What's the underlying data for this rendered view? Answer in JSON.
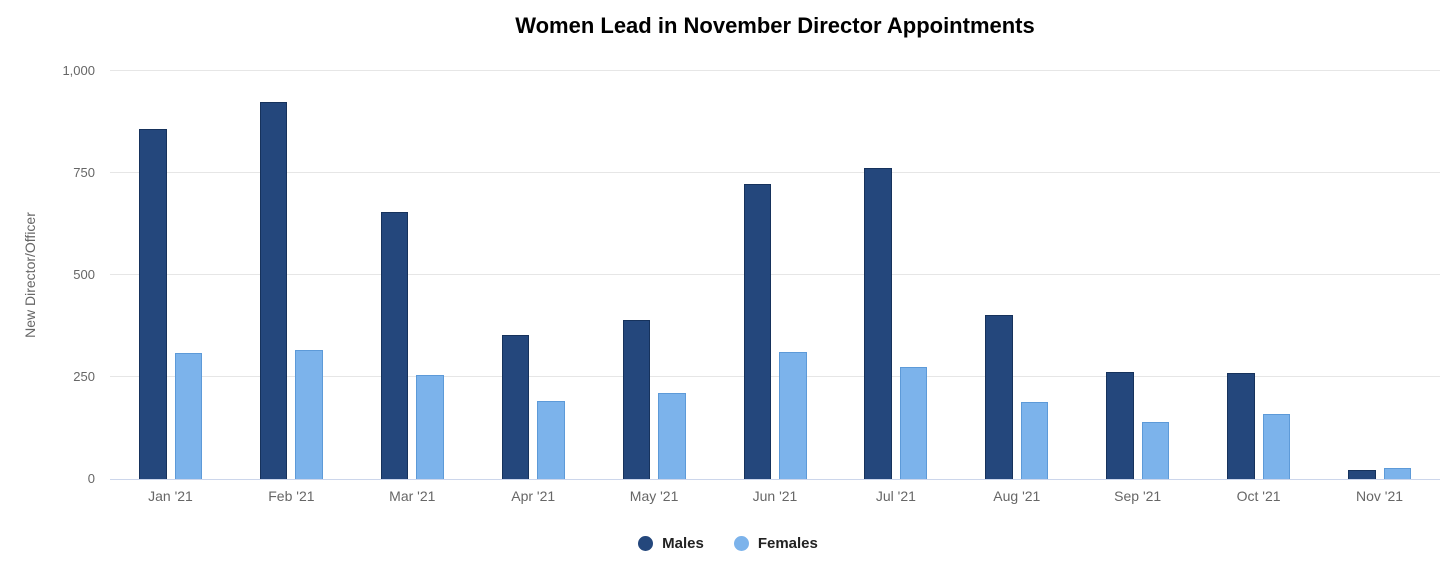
{
  "title": "Women Lead in November Director Appointments",
  "chart_data": {
    "type": "bar",
    "title": "Women Lead in November Director Appointments",
    "xlabel": "",
    "ylabel": "New Director/Officer",
    "ylim": [
      0,
      1000
    ],
    "grid": true,
    "legend_position": "bottom",
    "yticks": [
      {
        "value": 0,
        "label": "0"
      },
      {
        "value": 250,
        "label": "250"
      },
      {
        "value": 500,
        "label": "500"
      },
      {
        "value": 750,
        "label": "750"
      },
      {
        "value": 1000,
        "label": "1,000"
      }
    ],
    "categories": [
      "Jan '21",
      "Feb '21",
      "Mar '21",
      "Apr '21",
      "May '21",
      "Jun '21",
      "Jul '21",
      "Aug '21",
      "Sep '21",
      "Oct '21",
      "Nov '21"
    ],
    "series": [
      {
        "name": "Males",
        "color": "#24477c",
        "border_color": "#16325c",
        "values": [
          858,
          923,
          654,
          354,
          389,
          724,
          762,
          403,
          262,
          261,
          22
        ]
      },
      {
        "name": "Females",
        "color": "#7cb3eb",
        "border_color": "#5d9ad8",
        "values": [
          310,
          317,
          255,
          192,
          210,
          311,
          275,
          189,
          140,
          160,
          27
        ]
      }
    ]
  },
  "colors": {
    "grid": "#e6e6e6",
    "axis_line": "#ccd6eb",
    "tick_label": "#666666",
    "axis_title": "#666666",
    "title": "#000000",
    "background": "#ffffff"
  }
}
